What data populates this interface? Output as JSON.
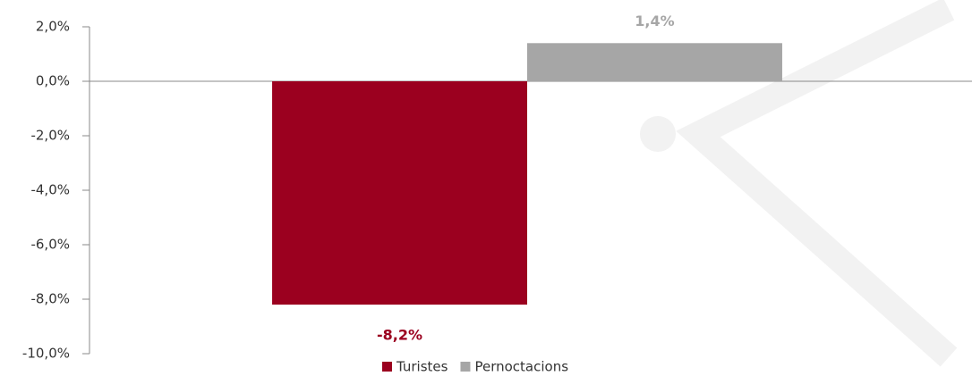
{
  "chart_data": {
    "type": "bar",
    "categories": [
      null
    ],
    "series": [
      {
        "name": "Turistes",
        "color": "#9b001f",
        "values": [
          -8.2
        ],
        "value_labels": [
          "-8,2%"
        ]
      },
      {
        "name": "Pernoctacions",
        "color": "#a6a6a6",
        "values": [
          1.4
        ],
        "value_labels": [
          "1,4%"
        ]
      }
    ],
    "ylim": [
      -10,
      2
    ],
    "yticks": [
      {
        "value": -10,
        "label": "-10,0%"
      },
      {
        "value": -8,
        "label": "-8,0%"
      },
      {
        "value": -6,
        "label": "-6,0%"
      },
      {
        "value": -4,
        "label": "-4,0%"
      },
      {
        "value": -2,
        "label": "-2,0%"
      },
      {
        "value": 0,
        "label": "0,0%"
      },
      {
        "value": 2,
        "label": "2,0%"
      }
    ],
    "legend": "bottom"
  }
}
